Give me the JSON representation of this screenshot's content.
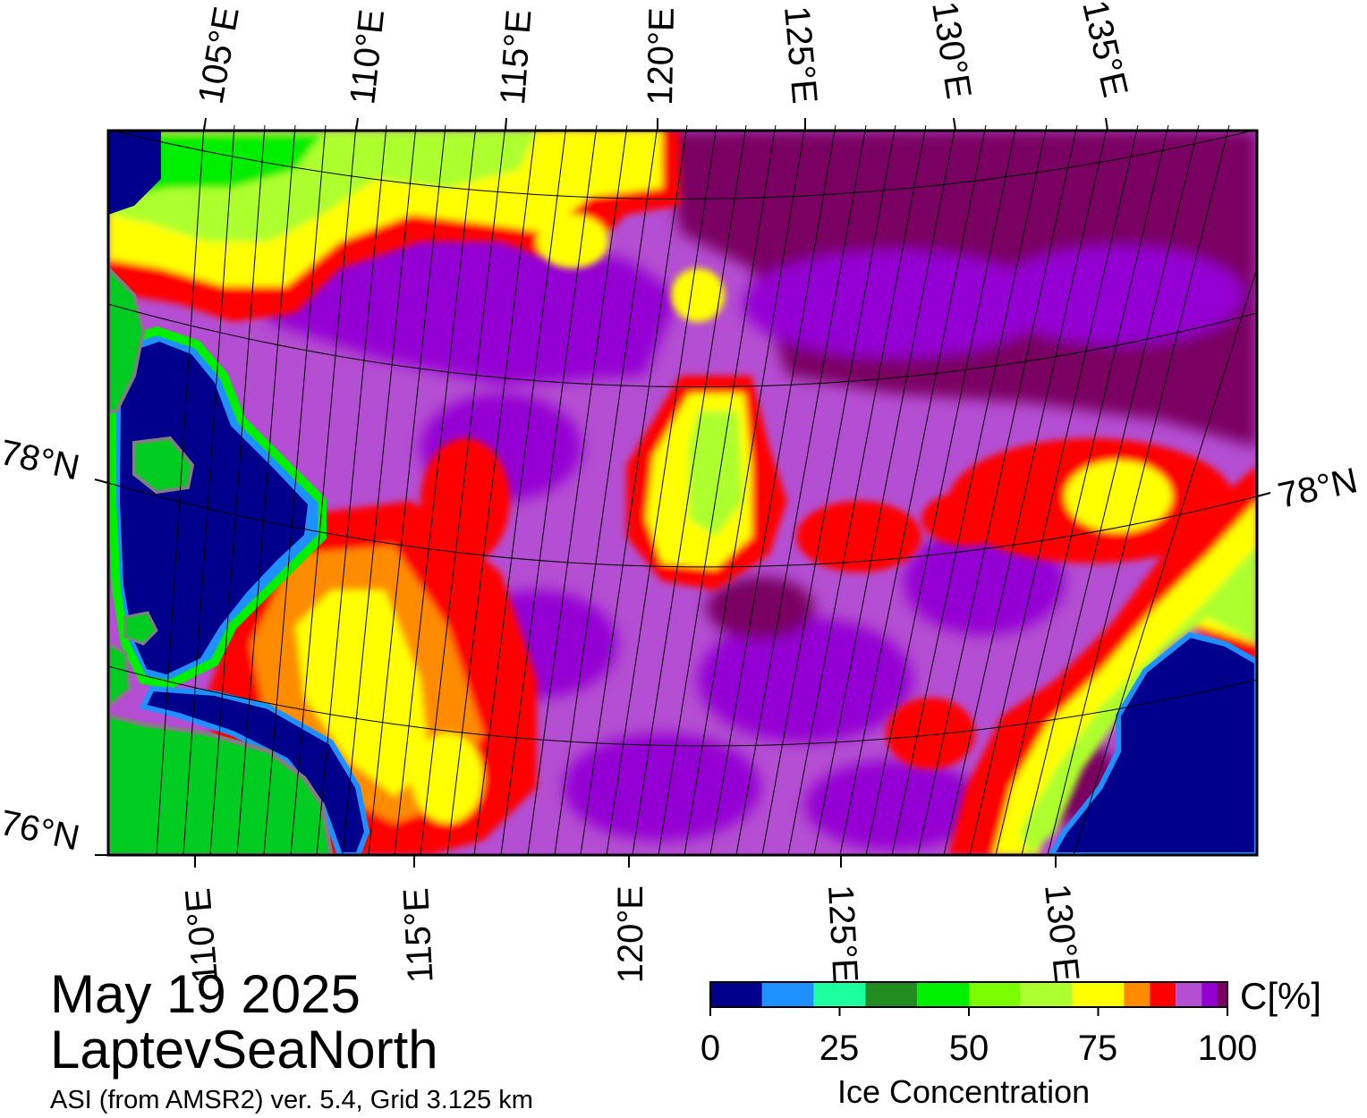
{
  "title": {
    "date": "May 19 2025",
    "region": "LaptevSeaNorth",
    "product": "ASI (from AMSR2) ver. 5.4,  Grid 3.125 km"
  },
  "graticule": {
    "top_lon_labels": [
      "105°E",
      "110°E",
      "115°E",
      "120°E",
      "125°E",
      "130°E",
      "135°E"
    ],
    "bottom_lon_labels": [
      "110°E",
      "115°E",
      "120°E",
      "125°E",
      "130°E"
    ],
    "lat_labels_left": [
      "78°N",
      "76°N"
    ],
    "lat_labels_right": [
      "78°N"
    ]
  },
  "colorbar": {
    "title": "Ice Concentration",
    "unit": "C[%]",
    "ticks": [
      "0",
      "25",
      "50",
      "75",
      "100"
    ],
    "range": [
      0,
      100
    ],
    "bins": [
      {
        "from": 0,
        "to": 10,
        "color": "#00008c"
      },
      {
        "from": 10,
        "to": 20,
        "color": "#1e90ff"
      },
      {
        "from": 20,
        "to": 30,
        "color": "#1effa0"
      },
      {
        "from": 30,
        "to": 40,
        "color": "#228b22"
      },
      {
        "from": 40,
        "to": 50,
        "color": "#00ee00"
      },
      {
        "from": 50,
        "to": 60,
        "color": "#7cfc00"
      },
      {
        "from": 60,
        "to": 70,
        "color": "#adff2f"
      },
      {
        "from": 70,
        "to": 80,
        "color": "#ffff00"
      },
      {
        "from": 80,
        "to": 85,
        "color": "#ff8c00"
      },
      {
        "from": 85,
        "to": 90,
        "color": "#ff0000"
      },
      {
        "from": 90,
        "to": 95,
        "color": "#b44ed2"
      },
      {
        "from": 95,
        "to": 98,
        "color": "#9400d3"
      },
      {
        "from": 98,
        "to": 100,
        "color": "#7a0062"
      }
    ]
  },
  "legend_colors": {
    "land": "#00cc22",
    "no_data": "#808080",
    "open_water": "#00008c"
  }
}
